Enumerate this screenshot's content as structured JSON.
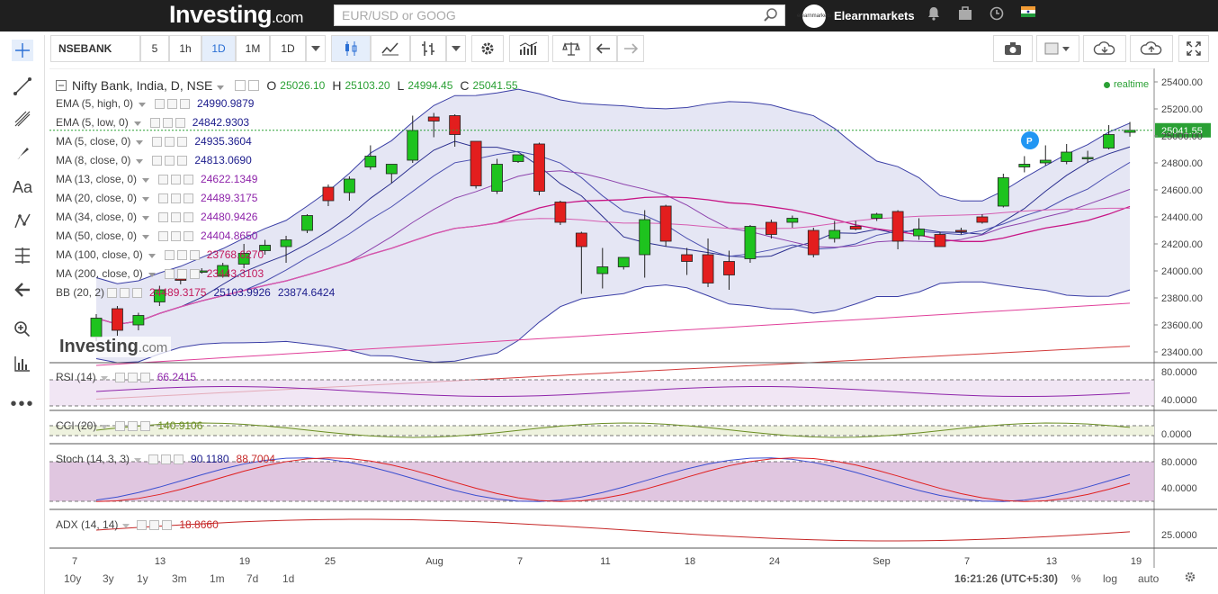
{
  "header": {
    "logo": "Investing",
    "logo_suffix": ".com",
    "search_placeholder": "EUR/USD or GOOG",
    "user_name": "Elearnmarkets",
    "avatar_text": "elearnmarkets"
  },
  "toolbar": {
    "symbol": "NSEBANK",
    "intervals": [
      "5",
      "1h",
      "1D",
      "1M",
      "1D"
    ],
    "active_interval": "1D"
  },
  "chart": {
    "title": "Nifty Bank, India, D, NSE",
    "ohlc": {
      "o_label": "O",
      "o": "25026.10",
      "h_label": "H",
      "h": "25103.20",
      "l_label": "L",
      "l": "24994.45",
      "c_label": "C",
      "c": "25041.55"
    },
    "realtime": "realtime",
    "last_price": "25041.55",
    "marker": "P",
    "price_axis": [
      "25400.00",
      "25200.00",
      "25000.00",
      "24800.00",
      "24600.00",
      "24400.00",
      "24200.00",
      "24000.00",
      "23800.00",
      "23600.00",
      "23400.00"
    ],
    "date_axis": [
      "7",
      "13",
      "19",
      "25",
      "Aug",
      "7",
      "11",
      "18",
      "24",
      "Sep",
      "7",
      "13",
      "19"
    ],
    "indicators": [
      {
        "name": "EMA (5, high, 0)",
        "value": "24990.9879",
        "color": "#1c1c8c"
      },
      {
        "name": "EMA (5, low, 0)",
        "value": "24842.9303",
        "color": "#1c1c8c"
      },
      {
        "name": "MA (5, close, 0)",
        "value": "24935.3604",
        "color": "#1c1c8c"
      },
      {
        "name": "MA (8, close, 0)",
        "value": "24813.0690",
        "color": "#1c1c8c"
      },
      {
        "name": "MA (13, close, 0)",
        "value": "24622.1349",
        "color": "#8e24aa"
      },
      {
        "name": "MA (20, close, 0)",
        "value": "24489.3175",
        "color": "#8e24aa"
      },
      {
        "name": "MA (34, close, 0)",
        "value": "24480.9426",
        "color": "#8e24aa"
      },
      {
        "name": "MA (50, close, 0)",
        "value": "24404.8650",
        "color": "#8e24aa"
      },
      {
        "name": "MA (100, close, 0)",
        "value": "23768.6270",
        "color": "#c2185b"
      },
      {
        "name": "MA (200, close, 0)",
        "value": "23443.3103",
        "color": "#c2185b"
      }
    ],
    "bb": {
      "name": "BB (20, 2)",
      "mid": "24489.3175",
      "upper": "25103.9926",
      "lower": "23874.6424"
    },
    "watermark": "Investing",
    "watermark_suffix": ".com",
    "panes": [
      {
        "name": "RSI (14)",
        "value": "66.2415",
        "axis": [
          "80.0000",
          "40.0000"
        ],
        "color": "#8e24aa"
      },
      {
        "name": "CCI (20)",
        "value": "140.9106",
        "axis": [
          "0.0000"
        ],
        "color": "#6b8e23"
      },
      {
        "name": "Stoch (14, 3, 3)",
        "value": "90.1180",
        "value2": "88.7004",
        "axis": [
          "80.0000",
          "40.0000"
        ],
        "color": "#1c1c8c",
        "color2": "#c62828"
      },
      {
        "name": "ADX (14, 14)",
        "value": "18.8660",
        "axis": [
          "25.0000"
        ],
        "color": "#c62828"
      }
    ]
  },
  "bottom": {
    "ranges": [
      "10y",
      "3y",
      "1y",
      "3m",
      "1m",
      "7d",
      "1d"
    ],
    "time": "16:21:26 (UTC+5:30)",
    "pct": "%",
    "log": "log",
    "auto": "auto"
  },
  "chart_data": {
    "type": "candlestick",
    "candles": [
      {
        "o": 23510,
        "h": 23680,
        "l": 23480,
        "c": 23650
      },
      {
        "o": 23720,
        "h": 23740,
        "l": 23520,
        "c": 23560
      },
      {
        "o": 23600,
        "h": 23690,
        "l": 23560,
        "c": 23670
      },
      {
        "o": 23770,
        "h": 23890,
        "l": 23740,
        "c": 23860
      },
      {
        "o": 23940,
        "h": 23960,
        "l": 23900,
        "c": 23930
      },
      {
        "o": 23995,
        "h": 24020,
        "l": 23980,
        "c": 24000
      },
      {
        "o": 23960,
        "h": 24060,
        "l": 23950,
        "c": 24040
      },
      {
        "o": 24050,
        "h": 24200,
        "l": 24020,
        "c": 24130
      },
      {
        "o": 24150,
        "h": 24230,
        "l": 24120,
        "c": 24190
      },
      {
        "o": 24180,
        "h": 24260,
        "l": 24060,
        "c": 24230
      },
      {
        "o": 24300,
        "h": 24420,
        "l": 24280,
        "c": 24410
      },
      {
        "o": 24620,
        "h": 24640,
        "l": 24480,
        "c": 24520
      },
      {
        "o": 24580,
        "h": 24700,
        "l": 24520,
        "c": 24680
      },
      {
        "o": 24770,
        "h": 24930,
        "l": 24750,
        "c": 24850
      },
      {
        "o": 24720,
        "h": 24780,
        "l": 24650,
        "c": 24790
      },
      {
        "o": 24820,
        "h": 25150,
        "l": 24800,
        "c": 25040
      },
      {
        "o": 25140,
        "h": 25170,
        "l": 24990,
        "c": 25110
      },
      {
        "o": 25150,
        "h": 25160,
        "l": 24920,
        "c": 25010
      },
      {
        "o": 24960,
        "h": 24960,
        "l": 24610,
        "c": 24630
      },
      {
        "o": 24590,
        "h": 24830,
        "l": 24570,
        "c": 24790
      },
      {
        "o": 24810,
        "h": 24860,
        "l": 24800,
        "c": 24860
      },
      {
        "o": 24940,
        "h": 24950,
        "l": 24560,
        "c": 24590
      },
      {
        "o": 24510,
        "h": 24520,
        "l": 24340,
        "c": 24360
      },
      {
        "o": 24280,
        "h": 24290,
        "l": 23830,
        "c": 24180
      },
      {
        "o": 23980,
        "h": 24170,
        "l": 23870,
        "c": 24030
      },
      {
        "o": 24030,
        "h": 24100,
        "l": 24010,
        "c": 24100
      },
      {
        "o": 24120,
        "h": 24450,
        "l": 23950,
        "c": 24380
      },
      {
        "o": 24480,
        "h": 24490,
        "l": 24180,
        "c": 24220
      },
      {
        "o": 24120,
        "h": 24170,
        "l": 23970,
        "c": 24070
      },
      {
        "o": 24120,
        "h": 24240,
        "l": 23880,
        "c": 23910
      },
      {
        "o": 24070,
        "h": 24150,
        "l": 23860,
        "c": 23970
      },
      {
        "o": 24090,
        "h": 24340,
        "l": 24060,
        "c": 24330
      },
      {
        "o": 24360,
        "h": 24380,
        "l": 24240,
        "c": 24270
      },
      {
        "o": 24360,
        "h": 24410,
        "l": 24320,
        "c": 24390
      },
      {
        "o": 24300,
        "h": 24320,
        "l": 24100,
        "c": 24120
      },
      {
        "o": 24240,
        "h": 24370,
        "l": 24210,
        "c": 24300
      },
      {
        "o": 24330,
        "h": 24370,
        "l": 24300,
        "c": 24310
      },
      {
        "o": 24390,
        "h": 24430,
        "l": 24370,
        "c": 24420
      },
      {
        "o": 24440,
        "h": 24450,
        "l": 24160,
        "c": 24220
      },
      {
        "o": 24260,
        "h": 24390,
        "l": 24230,
        "c": 24310
      },
      {
        "o": 24270,
        "h": 24290,
        "l": 24180,
        "c": 24180
      },
      {
        "o": 24300,
        "h": 24320,
        "l": 24270,
        "c": 24290
      },
      {
        "o": 24400,
        "h": 24420,
        "l": 24350,
        "c": 24360
      },
      {
        "o": 24480,
        "h": 24720,
        "l": 24470,
        "c": 24690
      },
      {
        "o": 24770,
        "h": 24850,
        "l": 24730,
        "c": 24790
      },
      {
        "o": 24800,
        "h": 24930,
        "l": 24780,
        "c": 24820
      },
      {
        "o": 24810,
        "h": 24940,
        "l": 24790,
        "c": 24880
      },
      {
        "o": 24830,
        "h": 24890,
        "l": 24800,
        "c": 24840
      },
      {
        "o": 24910,
        "h": 25080,
        "l": 24900,
        "c": 25010
      },
      {
        "o": 25026.1,
        "h": 25103.2,
        "l": 24994.45,
        "c": 25041.55
      }
    ],
    "ylim": [
      23300,
      25480
    ]
  }
}
